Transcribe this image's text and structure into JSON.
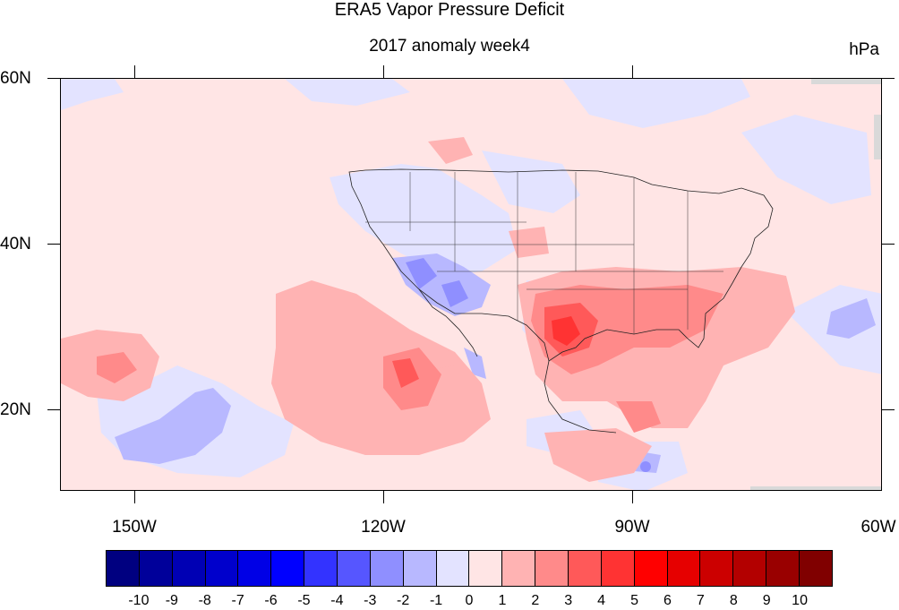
{
  "title": "ERA5 Vapor Pressure Deficit",
  "subtitle": "2017 anomaly week4",
  "units": "hPa",
  "lat_labels": [
    "60N",
    "40N",
    "20N"
  ],
  "lon_labels": [
    "150W",
    "120W",
    "90W",
    "60W"
  ],
  "colorbar": {
    "labels": [
      "-10",
      "-9",
      "-8",
      "-7",
      "-6",
      "-5",
      "-4",
      "-3",
      "-2",
      "-1",
      "0",
      "1",
      "2",
      "3",
      "4",
      "5",
      "6",
      "7",
      "8",
      "9",
      "10"
    ],
    "colors": [
      "#000080",
      "#00009a",
      "#0000b4",
      "#0000cc",
      "#0000e6",
      "#0000ff",
      "#3333ff",
      "#5656ff",
      "#8f8fff",
      "#b8b8ff",
      "#e3e3ff",
      "#ffe5e5",
      "#ffb3b3",
      "#ff8a8a",
      "#ff5959",
      "#ff3333",
      "#ff0000",
      "#e60000",
      "#cc0000",
      "#b30000",
      "#990000",
      "#800000"
    ]
  },
  "map_extent": {
    "lon": [
      -160,
      -60
    ],
    "lat": [
      10,
      60
    ]
  }
}
